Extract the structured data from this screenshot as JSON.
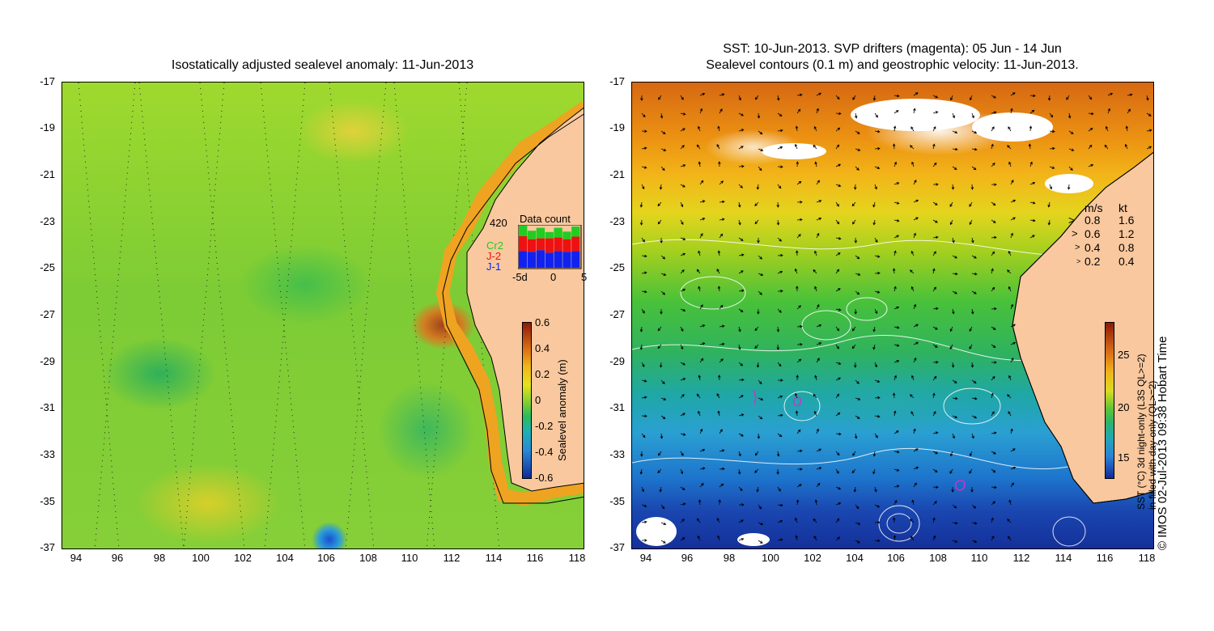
{
  "left_map": {
    "title": "Isostatically adjusted sealevel anomaly: 11-Jun-2013",
    "y_ticks": [
      "-17",
      "-19",
      "-21",
      "-23",
      "-25",
      "-27",
      "-29",
      "-31",
      "-33",
      "-35",
      "-37"
    ],
    "x_ticks": [
      "94",
      "96",
      "98",
      "100",
      "102",
      "104",
      "106",
      "108",
      "110",
      "112",
      "114",
      "116",
      "118"
    ],
    "colorbar": {
      "label": "Sealevel anomaly (m)",
      "ticks": [
        "0.6",
        "0.4",
        "0.2",
        "0",
        "-0.2",
        "-0.4",
        "-0.6"
      ]
    },
    "data_count": {
      "title": "Data count",
      "max_label": "420",
      "series": [
        {
          "name": "Cr2",
          "color": "#22cc22"
        },
        {
          "name": "J-2",
          "color": "#ee1111"
        },
        {
          "name": "J-1",
          "color": "#1122ee"
        }
      ],
      "x_ticks": [
        "-5d",
        "0",
        "5"
      ],
      "bars": [
        {
          "j1": 0.4,
          "j2": 0.35,
          "cr2": 0.25
        },
        {
          "j1": 0.38,
          "j2": 0.3,
          "cr2": 0.2
        },
        {
          "j1": 0.42,
          "j2": 0.28,
          "cr2": 0.25
        },
        {
          "j1": 0.36,
          "j2": 0.34,
          "cr2": 0.15
        },
        {
          "j1": 0.4,
          "j2": 0.32,
          "cr2": 0.23
        },
        {
          "j1": 0.38,
          "j2": 0.3,
          "cr2": 0.18
        },
        {
          "j1": 0.4,
          "j2": 0.34,
          "cr2": 0.24
        }
      ]
    }
  },
  "right_map": {
    "title_line1": "SST: 10-Jun-2013. SVP drifters (magenta): 05 Jun - 14 Jun",
    "title_line2": "Sealevel contours (0.1 m) and geostrophic velocity: 11-Jun-2013.",
    "y_ticks": [
      "-17",
      "-19",
      "-21",
      "-23",
      "-25",
      "-27",
      "-29",
      "-31",
      "-33",
      "-35",
      "-37"
    ],
    "x_ticks": [
      "94",
      "96",
      "98",
      "100",
      "102",
      "104",
      "106",
      "108",
      "110",
      "112",
      "114",
      "116",
      "118"
    ],
    "velocity_legend": {
      "header_ms": "m/s",
      "header_kt": "kt",
      "rows": [
        {
          "ms": "0.8",
          "kt": "1.6"
        },
        {
          "ms": "0.6",
          "kt": "1.2"
        },
        {
          "ms": "0.4",
          "kt": "0.8"
        },
        {
          "ms": "0.2",
          "kt": "0.4"
        }
      ]
    },
    "colorbar": {
      "label_line1": "SST (°C) 3d night-only (L3S QL>=2)",
      "label_line2": "in-filled with day-only (QL>=2)",
      "ticks": [
        "25",
        "20",
        "15"
      ]
    },
    "credit": "© IMOS 02-Jul-2013 09:38 Hobart Time"
  },
  "colors": {
    "land": "#f9c89e",
    "coast": "#000000",
    "contour": "#ffffff",
    "arrow": "#000000",
    "drifter": "#cc33cc"
  }
}
